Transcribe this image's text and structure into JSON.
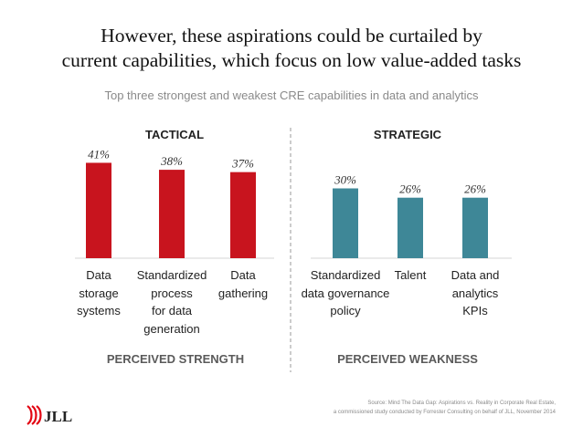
{
  "title": {
    "line1": "However, these aspirations could be curtailed by",
    "line2": "current capabilities, which focus on low value-added tasks"
  },
  "subtitle": "Top three strongest and weakest CRE capabilities in data and analytics",
  "groups": {
    "tactical": "TACTICAL",
    "strategic": "STRATEGIC",
    "strength": "PERCEIVED STRENGTH",
    "weakness": "PERCEIVED WEAKNESS"
  },
  "chart_data": {
    "type": "bar",
    "categories": [
      "Data\nstorage\nsystems",
      "Standardized\nprocess\nfor data\ngeneration",
      "Data\ngathering",
      "Standardized\ndata governance\npolicy",
      "Talent",
      "Data and\nanalytics\nKPIs"
    ],
    "values": [
      41,
      38,
      37,
      30,
      26,
      26
    ],
    "data_labels": [
      "41%",
      "38%",
      "37%",
      "30%",
      "26%",
      "26%"
    ],
    "groups": [
      "tactical",
      "tactical",
      "tactical",
      "strategic",
      "strategic",
      "strategic"
    ],
    "colors": {
      "tactical": "#c8141e",
      "strategic": "#3e8797"
    }
  },
  "source": {
    "line1": "Source: Mind The Data Gap: Aspirations vs. Reality in Corporate Real Estate,",
    "line2": "a commissioned study conducted by Forrester Consulting on behalf of JLL, November 2014"
  },
  "logo": {
    "text": "JLL",
    "color": "#e30613"
  }
}
